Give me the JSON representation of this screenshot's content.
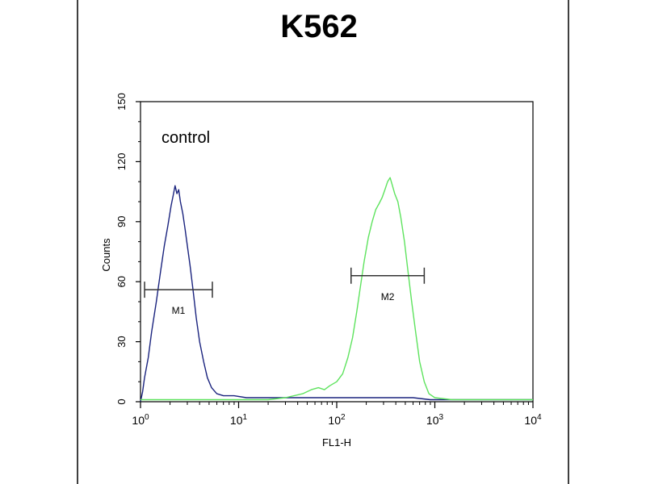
{
  "chart_data": {
    "type": "line",
    "title": "K562",
    "xlabel": "FL1-H",
    "ylabel": "Counts",
    "x_scale": "log",
    "xlim": [
      1,
      10000
    ],
    "ylim": [
      0,
      150
    ],
    "x_ticks": [
      {
        "base": "10",
        "exp": "0",
        "value": 1
      },
      {
        "base": "10",
        "exp": "1",
        "value": 10
      },
      {
        "base": "10",
        "exp": "2",
        "value": 100
      },
      {
        "base": "10",
        "exp": "3",
        "value": 1000
      },
      {
        "base": "10",
        "exp": "4",
        "value": 10000
      }
    ],
    "y_ticks": [
      {
        "label": "0",
        "value": 0
      },
      {
        "label": "30",
        "value": 30
      },
      {
        "label": "60",
        "value": 60
      },
      {
        "label": "90",
        "value": 90
      },
      {
        "label": "120",
        "value": 120
      },
      {
        "label": "150",
        "value": 150
      }
    ],
    "grid": false,
    "annotation": "control",
    "series": [
      {
        "color": "#1a237e",
        "points": [
          [
            1.0,
            0
          ],
          [
            1.05,
            5
          ],
          [
            1.1,
            12
          ],
          [
            1.2,
            22
          ],
          [
            1.3,
            35
          ],
          [
            1.45,
            50
          ],
          [
            1.6,
            65
          ],
          [
            1.75,
            78
          ],
          [
            1.9,
            88
          ],
          [
            2.05,
            98
          ],
          [
            2.15,
            103
          ],
          [
            2.25,
            108
          ],
          [
            2.35,
            104
          ],
          [
            2.45,
            106
          ],
          [
            2.55,
            100
          ],
          [
            2.7,
            94
          ],
          [
            2.85,
            86
          ],
          [
            3.0,
            78
          ],
          [
            3.2,
            68
          ],
          [
            3.45,
            55
          ],
          [
            3.7,
            42
          ],
          [
            4.0,
            30
          ],
          [
            4.4,
            20
          ],
          [
            4.8,
            12
          ],
          [
            5.3,
            7
          ],
          [
            6.0,
            4
          ],
          [
            7.0,
            3
          ],
          [
            9.0,
            3
          ],
          [
            12,
            2
          ],
          [
            20,
            2
          ],
          [
            40,
            2
          ],
          [
            70,
            2
          ],
          [
            100,
            2
          ],
          [
            150,
            2
          ],
          [
            250,
            2
          ],
          [
            400,
            2
          ],
          [
            600,
            2
          ],
          [
            900,
            1
          ],
          [
            1500,
            1
          ],
          [
            3000,
            1
          ],
          [
            10000,
            1
          ]
        ]
      },
      {
        "color": "#5ee35e",
        "points": [
          [
            1.0,
            1
          ],
          [
            5,
            1
          ],
          [
            10,
            1
          ],
          [
            20,
            1
          ],
          [
            30,
            2
          ],
          [
            45,
            4
          ],
          [
            55,
            6
          ],
          [
            65,
            7
          ],
          [
            75,
            6
          ],
          [
            85,
            8
          ],
          [
            100,
            10
          ],
          [
            115,
            14
          ],
          [
            130,
            22
          ],
          [
            145,
            32
          ],
          [
            160,
            45
          ],
          [
            175,
            58
          ],
          [
            190,
            70
          ],
          [
            210,
            82
          ],
          [
            230,
            90
          ],
          [
            250,
            96
          ],
          [
            270,
            99
          ],
          [
            290,
            102
          ],
          [
            310,
            106
          ],
          [
            330,
            110
          ],
          [
            350,
            112
          ],
          [
            370,
            108
          ],
          [
            390,
            104
          ],
          [
            420,
            100
          ],
          [
            450,
            92
          ],
          [
            490,
            80
          ],
          [
            530,
            66
          ],
          [
            580,
            50
          ],
          [
            640,
            34
          ],
          [
            700,
            20
          ],
          [
            780,
            10
          ],
          [
            870,
            4
          ],
          [
            1000,
            2
          ],
          [
            1500,
            1
          ],
          [
            3000,
            1
          ],
          [
            10000,
            1
          ]
        ]
      }
    ],
    "gates": [
      {
        "label": "M1",
        "x_start": 1.1,
        "x_end": 5.4,
        "y": 56
      },
      {
        "label": "M2",
        "x_start": 140,
        "x_end": 780,
        "y": 63
      }
    ]
  }
}
